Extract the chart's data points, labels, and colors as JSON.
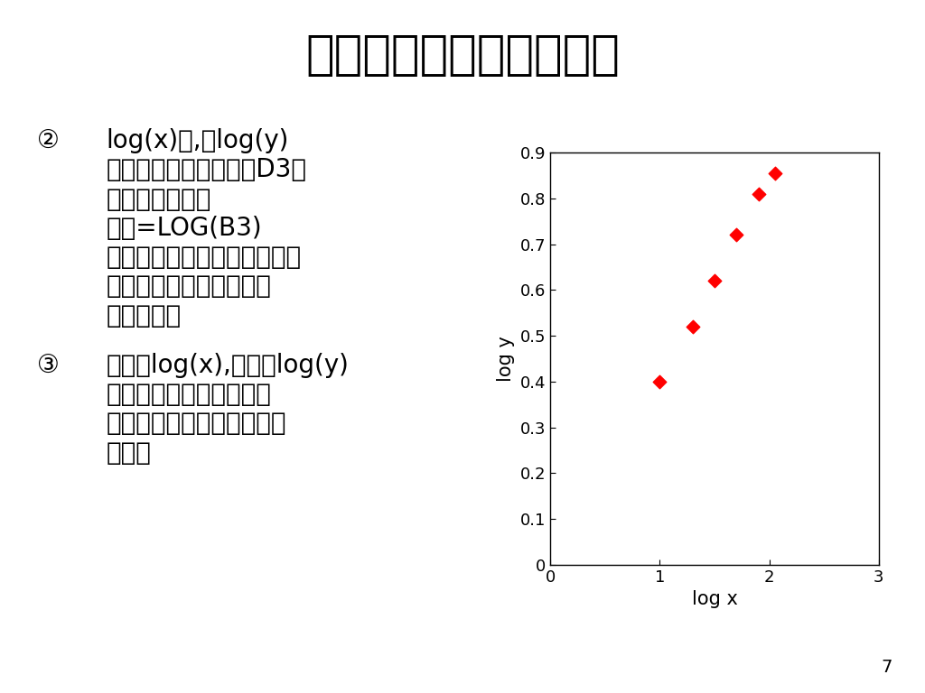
{
  "title": "対数目盛・対数値　演習",
  "title_fontsize": 38,
  "background_color": "#ffffff",
  "item2_symbol": "②",
  "item2_line1": "log(x)　,　log(y)",
  "item2_line2": "を計算します。（セルD3に",
  "item2_line3": "入力される式は",
  "item2_line4": "　　=LOG(B3)",
  "item2_line5": "のようになるでしょう。この",
  "item2_line6": "式をコピーするとよいで",
  "item2_line7": "しょう。）",
  "item3_symbol": "③",
  "item3_line1": "横軸　log(x),縦軸　log(y)",
  "item3_line2": "でグラフを作成します。",
  "item3_line3": "右図のようなグラフが出来",
  "item3_line4": "ます。",
  "scatter_x": [
    1.0,
    1.3,
    1.5,
    1.7,
    1.9,
    2.05
  ],
  "scatter_y": [
    0.4,
    0.52,
    0.62,
    0.72,
    0.81,
    0.855
  ],
  "scatter_color": "#ff0000",
  "marker_style": "D",
  "marker_size": 55,
  "xlabel": "log x",
  "ylabel": "log y",
  "xlim": [
    0,
    3
  ],
  "ylim": [
    0,
    0.9
  ],
  "xticks": [
    0,
    1,
    2,
    3
  ],
  "yticks": [
    0,
    0.1,
    0.2,
    0.3,
    0.4,
    0.5,
    0.6,
    0.7,
    0.8,
    0.9
  ],
  "ytick_labels": [
    "0",
    "0.1",
    "0.2",
    "0.3",
    "0.4",
    "0.5",
    "0.6",
    "0.7",
    "0.8",
    "0.9"
  ],
  "page_number": "7",
  "font_size_body": 20,
  "font_size_axis_label": 15,
  "font_size_tick": 13
}
